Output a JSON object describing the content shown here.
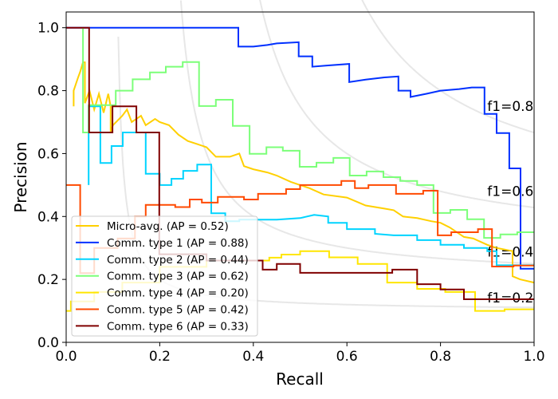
{
  "chart_data": {
    "type": "line",
    "title": "",
    "xlabel": "Recall",
    "ylabel": "Precision",
    "xlim": [
      0,
      1.0
    ],
    "ylim": [
      0,
      1.05
    ],
    "xticks": [
      "0.0",
      "0.2",
      "0.4",
      "0.6",
      "0.8",
      "1.0"
    ],
    "yticks": [
      "0.0",
      "0.2",
      "0.4",
      "0.6",
      "0.8",
      "1.0"
    ],
    "grid": false,
    "legend_position": "lower-left",
    "iso_f1": [
      {
        "f1": 0.2,
        "label": "f1=0.2"
      },
      {
        "f1": 0.4,
        "label": "f1=0.4"
      },
      {
        "f1": 0.6,
        "label": "f1=0.6"
      },
      {
        "f1": 0.8,
        "label": "f1=0.8"
      }
    ],
    "series": [
      {
        "name": "Micro-avg. (AP = 0.52)",
        "color": "#FFD000",
        "points": [
          [
            0.016,
            0.75
          ],
          [
            0.016,
            0.8
          ],
          [
            0.025,
            0.84
          ],
          [
            0.03,
            0.86
          ],
          [
            0.036,
            0.89
          ],
          [
            0.04,
            0.89
          ],
          [
            0.04,
            0.76
          ],
          [
            0.05,
            0.8
          ],
          [
            0.06,
            0.74
          ],
          [
            0.07,
            0.79
          ],
          [
            0.08,
            0.73
          ],
          [
            0.09,
            0.79
          ],
          [
            0.095,
            0.75
          ],
          [
            0.095,
            0.67
          ],
          [
            0.1,
            0.69
          ],
          [
            0.12,
            0.72
          ],
          [
            0.13,
            0.74
          ],
          [
            0.14,
            0.7
          ],
          [
            0.16,
            0.72
          ],
          [
            0.17,
            0.69
          ],
          [
            0.19,
            0.71
          ],
          [
            0.2,
            0.7
          ],
          [
            0.22,
            0.69
          ],
          [
            0.24,
            0.66
          ],
          [
            0.26,
            0.64
          ],
          [
            0.28,
            0.63
          ],
          [
            0.3,
            0.62
          ],
          [
            0.32,
            0.59
          ],
          [
            0.35,
            0.59
          ],
          [
            0.37,
            0.6
          ],
          [
            0.38,
            0.56
          ],
          [
            0.4,
            0.55
          ],
          [
            0.43,
            0.54
          ],
          [
            0.45,
            0.53
          ],
          [
            0.48,
            0.51
          ],
          [
            0.5,
            0.5
          ],
          [
            0.52,
            0.49
          ],
          [
            0.55,
            0.47
          ],
          [
            0.6,
            0.46
          ],
          [
            0.64,
            0.435
          ],
          [
            0.68,
            0.425
          ],
          [
            0.7,
            0.42
          ],
          [
            0.72,
            0.4
          ],
          [
            0.75,
            0.395
          ],
          [
            0.78,
            0.385
          ],
          [
            0.8,
            0.38
          ],
          [
            0.82,
            0.365
          ],
          [
            0.85,
            0.335
          ],
          [
            0.87,
            0.33
          ],
          [
            0.9,
            0.31
          ],
          [
            0.92,
            0.3
          ],
          [
            0.954,
            0.29
          ],
          [
            0.954,
            0.21
          ],
          [
            0.97,
            0.2
          ],
          [
            1.0,
            0.19
          ]
        ]
      },
      {
        "name": "Comm. type 1 (AP = 0.88)",
        "color": "#0030FF",
        "points": [
          [
            0.0,
            1.0
          ],
          [
            0.368,
            1.0
          ],
          [
            0.368,
            0.94
          ],
          [
            0.4,
            0.94
          ],
          [
            0.43,
            0.945
          ],
          [
            0.45,
            0.95
          ],
          [
            0.497,
            0.954
          ],
          [
            0.497,
            0.909
          ],
          [
            0.526,
            0.909
          ],
          [
            0.526,
            0.876
          ],
          [
            0.56,
            0.88
          ],
          [
            0.605,
            0.885
          ],
          [
            0.605,
            0.827
          ],
          [
            0.64,
            0.835
          ],
          [
            0.68,
            0.842
          ],
          [
            0.71,
            0.845
          ],
          [
            0.71,
            0.8
          ],
          [
            0.736,
            0.8
          ],
          [
            0.736,
            0.78
          ],
          [
            0.77,
            0.79
          ],
          [
            0.8,
            0.8
          ],
          [
            0.84,
            0.805
          ],
          [
            0.867,
            0.81
          ],
          [
            0.894,
            0.81
          ],
          [
            0.894,
            0.726
          ],
          [
            0.92,
            0.726
          ],
          [
            0.92,
            0.665
          ],
          [
            0.947,
            0.665
          ],
          [
            0.947,
            0.553
          ],
          [
            0.971,
            0.553
          ],
          [
            0.971,
            0.234
          ],
          [
            1.0,
            0.234
          ]
        ]
      },
      {
        "name": "Comm. type 2 (AP = 0.44)",
        "color": "#00D4FF",
        "points": [
          [
            0.048,
            0.5
          ],
          [
            0.048,
            0.75
          ],
          [
            0.073,
            0.75
          ],
          [
            0.073,
            0.57
          ],
          [
            0.097,
            0.57
          ],
          [
            0.097,
            0.624
          ],
          [
            0.121,
            0.624
          ],
          [
            0.121,
            0.667
          ],
          [
            0.17,
            0.667
          ],
          [
            0.17,
            0.536
          ],
          [
            0.2,
            0.536
          ],
          [
            0.2,
            0.5
          ],
          [
            0.225,
            0.5
          ],
          [
            0.225,
            0.52
          ],
          [
            0.25,
            0.52
          ],
          [
            0.25,
            0.545
          ],
          [
            0.28,
            0.545
          ],
          [
            0.28,
            0.565
          ],
          [
            0.31,
            0.565
          ],
          [
            0.31,
            0.41
          ],
          [
            0.34,
            0.41
          ],
          [
            0.34,
            0.385
          ],
          [
            0.37,
            0.385
          ],
          [
            0.37,
            0.39
          ],
          [
            0.42,
            0.39
          ],
          [
            0.45,
            0.39
          ],
          [
            0.5,
            0.395
          ],
          [
            0.53,
            0.405
          ],
          [
            0.56,
            0.4
          ],
          [
            0.56,
            0.38
          ],
          [
            0.6,
            0.38
          ],
          [
            0.6,
            0.36
          ],
          [
            0.66,
            0.36
          ],
          [
            0.66,
            0.345
          ],
          [
            0.7,
            0.34
          ],
          [
            0.75,
            0.34
          ],
          [
            0.75,
            0.325
          ],
          [
            0.8,
            0.325
          ],
          [
            0.8,
            0.31
          ],
          [
            0.85,
            0.31
          ],
          [
            0.85,
            0.3
          ],
          [
            0.9,
            0.3
          ],
          [
            0.9,
            0.29
          ],
          [
            0.92,
            0.29
          ],
          [
            0.92,
            0.245
          ],
          [
            1.0,
            0.245
          ]
        ]
      },
      {
        "name": "Comm. type 3 (AP = 0.62)",
        "color": "#7CFF79",
        "points": [
          [
            0.036,
            1.0
          ],
          [
            0.036,
            0.667
          ],
          [
            0.048,
            0.667
          ],
          [
            0.048,
            0.754
          ],
          [
            0.106,
            0.754
          ],
          [
            0.106,
            0.8
          ],
          [
            0.142,
            0.8
          ],
          [
            0.142,
            0.836
          ],
          [
            0.179,
            0.836
          ],
          [
            0.179,
            0.858
          ],
          [
            0.213,
            0.858
          ],
          [
            0.213,
            0.876
          ],
          [
            0.249,
            0.876
          ],
          [
            0.249,
            0.891
          ],
          [
            0.284,
            0.891
          ],
          [
            0.284,
            0.751
          ],
          [
            0.32,
            0.751
          ],
          [
            0.32,
            0.771
          ],
          [
            0.356,
            0.771
          ],
          [
            0.356,
            0.688
          ],
          [
            0.392,
            0.688
          ],
          [
            0.392,
            0.599
          ],
          [
            0.428,
            0.599
          ],
          [
            0.428,
            0.62
          ],
          [
            0.463,
            0.62
          ],
          [
            0.463,
            0.609
          ],
          [
            0.499,
            0.609
          ],
          [
            0.499,
            0.558
          ],
          [
            0.535,
            0.558
          ],
          [
            0.535,
            0.571
          ],
          [
            0.571,
            0.571
          ],
          [
            0.571,
            0.586
          ],
          [
            0.606,
            0.586
          ],
          [
            0.606,
            0.53
          ],
          [
            0.642,
            0.53
          ],
          [
            0.642,
            0.543
          ],
          [
            0.678,
            0.543
          ],
          [
            0.678,
            0.525
          ],
          [
            0.714,
            0.525
          ],
          [
            0.714,
            0.513
          ],
          [
            0.75,
            0.513
          ],
          [
            0.75,
            0.5
          ],
          [
            0.785,
            0.5
          ],
          [
            0.785,
            0.411
          ],
          [
            0.821,
            0.411
          ],
          [
            0.821,
            0.421
          ],
          [
            0.857,
            0.421
          ],
          [
            0.857,
            0.391
          ],
          [
            0.893,
            0.391
          ],
          [
            0.893,
            0.332
          ],
          [
            0.928,
            0.332
          ],
          [
            0.928,
            0.343
          ],
          [
            0.964,
            0.343
          ],
          [
            0.964,
            0.35
          ],
          [
            1.0,
            0.35
          ]
        ]
      },
      {
        "name": "Comm. type 4 (AP = 0.20)",
        "color": "#FFE600",
        "points": [
          [
            0.0,
            0.1
          ],
          [
            0.01,
            0.1
          ],
          [
            0.01,
            0.13
          ],
          [
            0.06,
            0.13
          ],
          [
            0.06,
            0.16
          ],
          [
            0.12,
            0.16
          ],
          [
            0.12,
            0.19
          ],
          [
            0.2,
            0.19
          ],
          [
            0.2,
            0.24
          ],
          [
            0.3,
            0.24
          ],
          [
            0.3,
            0.26
          ],
          [
            0.434,
            0.26
          ],
          [
            0.434,
            0.269
          ],
          [
            0.46,
            0.269
          ],
          [
            0.46,
            0.279
          ],
          [
            0.5,
            0.279
          ],
          [
            0.5,
            0.29
          ],
          [
            0.562,
            0.29
          ],
          [
            0.562,
            0.27
          ],
          [
            0.623,
            0.27
          ],
          [
            0.623,
            0.249
          ],
          [
            0.686,
            0.249
          ],
          [
            0.686,
            0.19
          ],
          [
            0.75,
            0.19
          ],
          [
            0.75,
            0.17
          ],
          [
            0.81,
            0.17
          ],
          [
            0.81,
            0.16
          ],
          [
            0.874,
            0.16
          ],
          [
            0.874,
            0.1
          ],
          [
            0.937,
            0.1
          ],
          [
            0.937,
            0.105
          ],
          [
            1.0,
            0.105
          ]
        ]
      },
      {
        "name": "Comm. type 5 (AP = 0.42)",
        "color": "#FF4A00",
        "points": [
          [
            0.0,
            0.5
          ],
          [
            0.03,
            0.5
          ],
          [
            0.03,
            0.22
          ],
          [
            0.06,
            0.22
          ],
          [
            0.06,
            0.3
          ],
          [
            0.11,
            0.3
          ],
          [
            0.11,
            0.33
          ],
          [
            0.147,
            0.33
          ],
          [
            0.147,
            0.4
          ],
          [
            0.17,
            0.4
          ],
          [
            0.17,
            0.437
          ],
          [
            0.233,
            0.437
          ],
          [
            0.233,
            0.43
          ],
          [
            0.264,
            0.43
          ],
          [
            0.264,
            0.454
          ],
          [
            0.29,
            0.454
          ],
          [
            0.29,
            0.444
          ],
          [
            0.324,
            0.444
          ],
          [
            0.324,
            0.462
          ],
          [
            0.38,
            0.462
          ],
          [
            0.38,
            0.454
          ],
          [
            0.41,
            0.454
          ],
          [
            0.41,
            0.472
          ],
          [
            0.47,
            0.472
          ],
          [
            0.47,
            0.487
          ],
          [
            0.5,
            0.487
          ],
          [
            0.5,
            0.5
          ],
          [
            0.588,
            0.5
          ],
          [
            0.588,
            0.513
          ],
          [
            0.617,
            0.513
          ],
          [
            0.617,
            0.49
          ],
          [
            0.646,
            0.49
          ],
          [
            0.646,
            0.5
          ],
          [
            0.705,
            0.5
          ],
          [
            0.705,
            0.472
          ],
          [
            0.763,
            0.472
          ],
          [
            0.763,
            0.482
          ],
          [
            0.794,
            0.482
          ],
          [
            0.794,
            0.34
          ],
          [
            0.823,
            0.34
          ],
          [
            0.823,
            0.35
          ],
          [
            0.88,
            0.35
          ],
          [
            0.88,
            0.36
          ],
          [
            0.91,
            0.36
          ],
          [
            0.91,
            0.241
          ],
          [
            0.956,
            0.241
          ],
          [
            0.956,
            0.244
          ],
          [
            1.0,
            0.244
          ]
        ]
      },
      {
        "name": "Comm. type 6 (AP = 0.33)",
        "color": "#800000",
        "points": [
          [
            0.0,
            1.0
          ],
          [
            0.049,
            1.0
          ],
          [
            0.049,
            0.667
          ],
          [
            0.099,
            0.667
          ],
          [
            0.099,
            0.75
          ],
          [
            0.15,
            0.75
          ],
          [
            0.15,
            0.667
          ],
          [
            0.199,
            0.667
          ],
          [
            0.199,
            0.28
          ],
          [
            0.3,
            0.28
          ],
          [
            0.3,
            0.26
          ],
          [
            0.42,
            0.26
          ],
          [
            0.42,
            0.231
          ],
          [
            0.45,
            0.231
          ],
          [
            0.45,
            0.249
          ],
          [
            0.5,
            0.249
          ],
          [
            0.5,
            0.221
          ],
          [
            0.697,
            0.221
          ],
          [
            0.697,
            0.231
          ],
          [
            0.75,
            0.231
          ],
          [
            0.75,
            0.185
          ],
          [
            0.8,
            0.185
          ],
          [
            0.8,
            0.168
          ],
          [
            0.85,
            0.168
          ],
          [
            0.85,
            0.137
          ],
          [
            1.0,
            0.137
          ]
        ]
      }
    ]
  }
}
